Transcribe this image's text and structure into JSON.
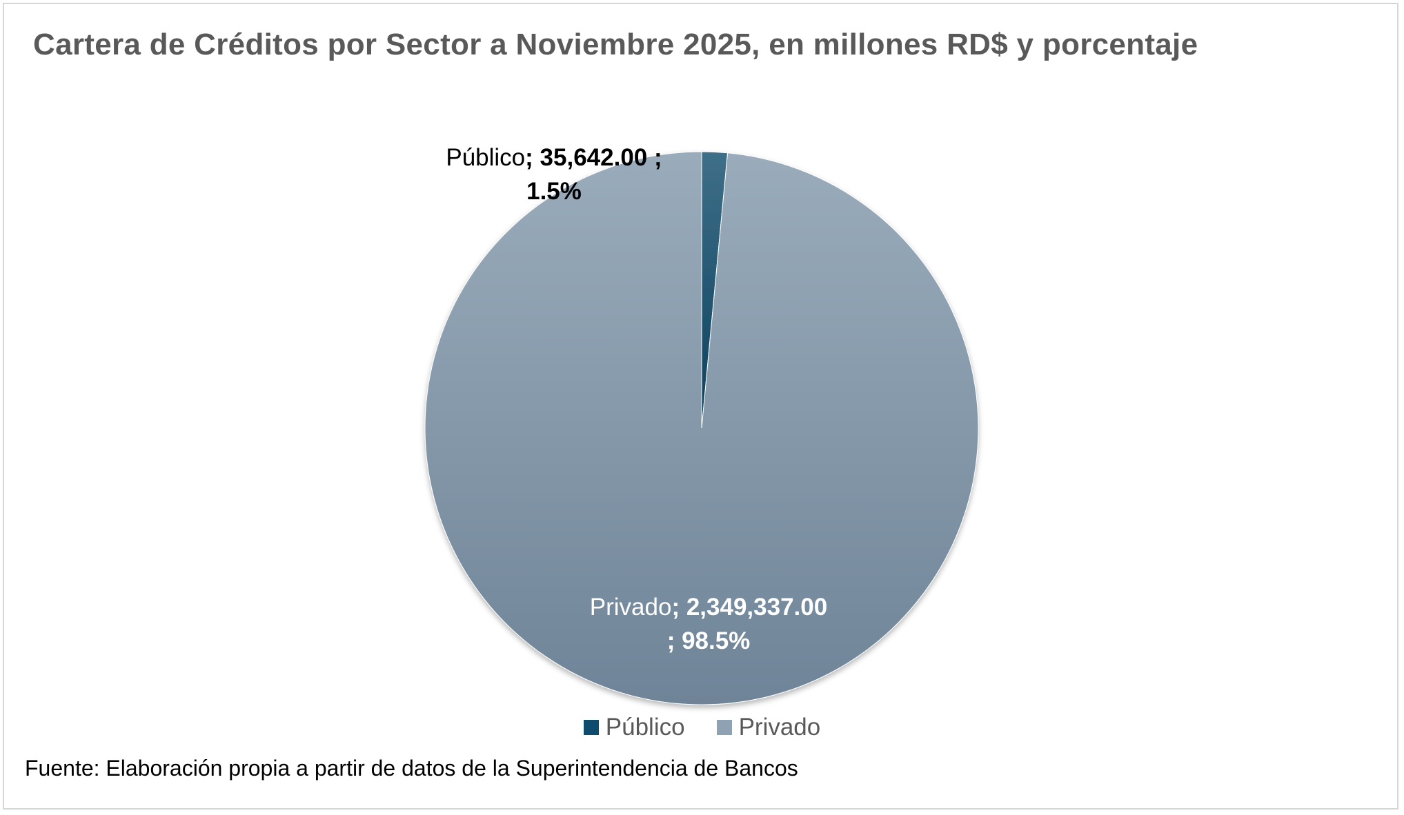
{
  "title": "Cartera de Créditos por Sector a Noviembre 2025, en millones RD$ y porcentaje",
  "chart_data": {
    "type": "pie",
    "title": "Cartera de Créditos por Sector a Noviembre 2025, en millones RD$ y porcentaje",
    "categories": [
      "Público",
      "Privado"
    ],
    "values": [
      35642.0,
      2349337.0
    ],
    "percentages": [
      1.5,
      98.5
    ],
    "value_labels": [
      "35,642.00",
      "2,349,337.00"
    ],
    "percent_labels": [
      "1.5%",
      "98.5%"
    ],
    "colors": [
      "#0e4b6c",
      "#8ea2b3"
    ],
    "legend_position": "bottom"
  },
  "labels": {
    "publico": {
      "name": "Público",
      "sep1": "; ",
      "value": "35,642.00 ;",
      "pct": "1.5%"
    },
    "privado": {
      "name": "Privado",
      "sep1": "; ",
      "value": "2,349,337.00",
      "pct": "; 98.5%"
    }
  },
  "legend": {
    "items": [
      "Público",
      "Privado"
    ]
  },
  "source": "Fuente: Elaboración propia a  partir de datos de la Superintendencia de Bancos"
}
